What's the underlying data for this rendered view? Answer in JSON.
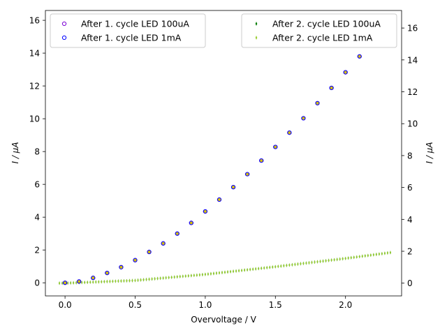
{
  "chart_data": {
    "type": "scatter",
    "title": "",
    "xlabel": "Overvoltage / V",
    "ylabel_left": "I / µA",
    "ylabel_right": "I / µA",
    "xlim": [
      -0.14,
      2.4
    ],
    "ylim_left": [
      -0.8,
      16.6
    ],
    "ylim_right": [
      -0.8,
      17.1
    ],
    "x_ticks": [
      "0.0",
      "0.5",
      "1.0",
      "1.5",
      "2.0"
    ],
    "x_tick_values": [
      0,
      0.5,
      1.0,
      1.5,
      2.0
    ],
    "y_ticks_left": [
      "0",
      "2",
      "4",
      "6",
      "8",
      "10",
      "12",
      "14",
      "16"
    ],
    "y_tick_values_left": [
      0,
      2,
      4,
      6,
      8,
      10,
      12,
      14,
      16
    ],
    "y_ticks_right": [
      "0",
      "2",
      "4",
      "6",
      "8",
      "10",
      "12",
      "14",
      "16"
    ],
    "y_tick_values_right": [
      0,
      2,
      4,
      6,
      8,
      10,
      12,
      14,
      16
    ],
    "grid": false,
    "legend_left_position": "top-left",
    "legend_right_position": "top-right",
    "series": [
      {
        "name": "After 1. cycle LED 100uA",
        "axis": "left",
        "marker": "hollow-circle",
        "color": "#7b00d4",
        "x": [
          0.0,
          0.1,
          0.2,
          0.3,
          0.4,
          0.5,
          0.6,
          0.7,
          0.8,
          0.9,
          1.0,
          1.1,
          1.2,
          1.3,
          1.4,
          1.5,
          1.6,
          1.7,
          1.8,
          1.9,
          2.0,
          2.1
        ],
        "y": [
          0.0,
          0.08,
          0.3,
          0.6,
          0.95,
          1.38,
          1.88,
          2.4,
          3.0,
          3.65,
          4.35,
          5.07,
          5.83,
          6.62,
          7.45,
          8.28,
          9.15,
          10.03,
          10.95,
          11.88,
          12.83,
          13.8
        ]
      },
      {
        "name": "After 1. cycle LED 1mA",
        "axis": "left",
        "marker": "hollow-circle",
        "color": "#0000ff",
        "x": [
          0.0,
          0.1,
          0.2,
          0.3,
          0.4,
          0.5,
          0.6,
          0.7,
          0.8,
          0.9,
          1.0,
          1.1,
          1.2,
          1.3,
          1.4,
          1.5,
          1.6,
          1.7,
          1.8,
          1.9,
          2.0,
          2.1
        ],
        "y": [
          0.0,
          0.08,
          0.3,
          0.6,
          0.95,
          1.38,
          1.88,
          2.4,
          3.0,
          3.65,
          4.35,
          5.07,
          5.83,
          6.62,
          7.45,
          8.28,
          9.15,
          10.03,
          10.95,
          11.88,
          12.83,
          13.8
        ]
      },
      {
        "name": "After 2. cycle LED 100uA",
        "axis": "right",
        "marker": "thin-diamond",
        "color": "#007a00",
        "x_start": -0.04,
        "x_end": 2.33,
        "x_step": 0.02,
        "y_formula_points": [
          [
            0.0,
            0.0
          ],
          [
            0.5,
            0.17
          ],
          [
            1.0,
            0.55
          ],
          [
            1.5,
            1.03
          ],
          [
            2.0,
            1.55
          ],
          [
            2.33,
            1.93
          ]
        ]
      },
      {
        "name": "After 2. cycle LED 1mA",
        "axis": "right",
        "marker": "thin-diamond",
        "color": "#9acd32",
        "x_start": -0.04,
        "x_end": 2.33,
        "x_step": 0.02,
        "y_formula_points": [
          [
            0.0,
            0.0
          ],
          [
            0.5,
            0.17
          ],
          [
            1.0,
            0.55
          ],
          [
            1.5,
            1.03
          ],
          [
            2.0,
            1.55
          ],
          [
            2.33,
            1.93
          ]
        ]
      }
    ]
  }
}
